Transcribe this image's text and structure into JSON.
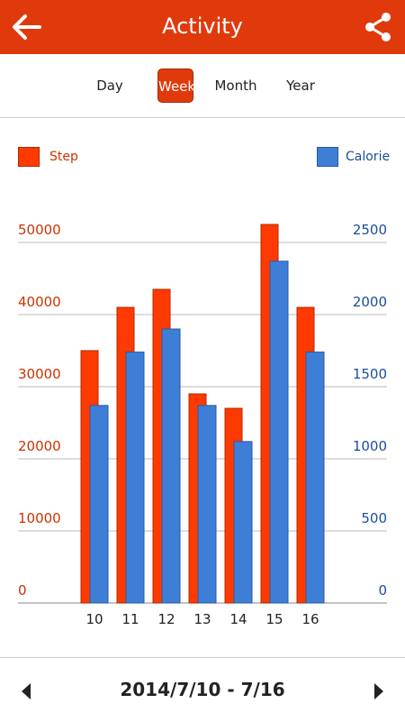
{
  "header": {
    "title": "Activity",
    "back_icon": "arrow-left-icon",
    "share_icon": "share-icon"
  },
  "tabs": [
    {
      "label": "Day",
      "active": false
    },
    {
      "label": "Week",
      "active": true
    },
    {
      "label": "Month",
      "active": false
    },
    {
      "label": "Year",
      "active": false
    }
  ],
  "legend": {
    "step": "Step",
    "calorie": "Calorie"
  },
  "colors": {
    "accent": "#e03a0c",
    "step": "#ff3a00",
    "calorie": "#3f7ed6",
    "left_axis": "#cc3300",
    "right_axis": "#1a4e99"
  },
  "chart_data": {
    "type": "bar",
    "categories": [
      "10",
      "11",
      "12",
      "13",
      "14",
      "15",
      "16"
    ],
    "series": [
      {
        "name": "Step",
        "axis": "left",
        "values": [
          35000,
          41000,
          43500,
          29000,
          27000,
          52500,
          41000
        ]
      },
      {
        "name": "Calorie",
        "axis": "right",
        "values": [
          1370,
          1740,
          1900,
          1370,
          1120,
          2370,
          1740
        ]
      }
    ],
    "left_ticks": [
      "0",
      "10000",
      "20000",
      "30000",
      "40000",
      "50000"
    ],
    "right_ticks": [
      "0",
      "500",
      "1000",
      "1500",
      "2000",
      "2500"
    ],
    "ylim_left": [
      0,
      50000
    ],
    "ylim_right": [
      0,
      2500
    ],
    "grid": true
  },
  "footer": {
    "range": "2014/7/10 - 7/16",
    "prev_icon": "triangle-left-icon",
    "next_icon": "triangle-right-icon"
  }
}
